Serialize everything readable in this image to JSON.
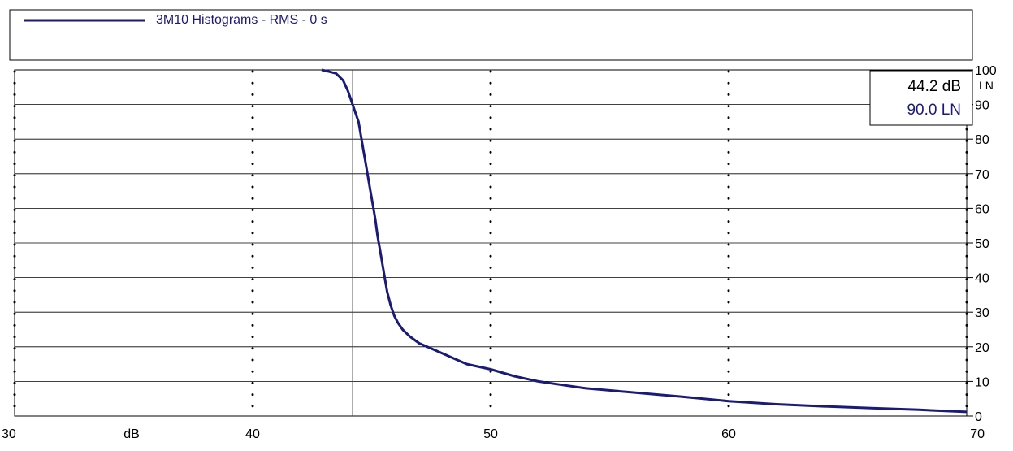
{
  "legend": {
    "series_label": "3M10 Histograms - RMS - 0 s"
  },
  "cursor_readout": {
    "x_value": "44.2 dB",
    "y_value": "90.0 LN"
  },
  "colors": {
    "series": "#1a1a7a",
    "grid": "#000000",
    "readout_y": "#1a1a7a"
  },
  "chart_data": {
    "type": "line",
    "title": "",
    "xlabel": "dB",
    "ylabel": "LN",
    "xlim": [
      30,
      70
    ],
    "ylim": [
      0,
      100
    ],
    "x_ticks": [
      30,
      40,
      50,
      60,
      70
    ],
    "y_ticks": [
      0,
      10,
      20,
      30,
      40,
      50,
      60,
      70,
      80,
      90,
      100
    ],
    "grid": {
      "x": "dotted",
      "y": "solid"
    },
    "legend_position": "top",
    "cursor": {
      "x": 44.2,
      "y": 90.0
    },
    "series": [
      {
        "name": "3M10 Histograms - RMS - 0 s",
        "x": [
          42.9,
          43.2,
          43.5,
          43.8,
          44.0,
          44.15,
          44.3,
          44.45,
          44.55,
          44.65,
          44.75,
          44.85,
          44.95,
          45.05,
          45.15,
          45.25,
          45.35,
          45.45,
          45.55,
          45.65,
          45.8,
          45.95,
          46.1,
          46.3,
          46.6,
          47.0,
          47.5,
          48.0,
          48.5,
          49.0,
          50.0,
          51.0,
          52.0,
          53.0,
          54.0,
          56.0,
          58.0,
          60.0,
          62.0,
          64.0,
          66.0,
          68.0,
          70.0
        ],
        "y": [
          100,
          99.5,
          99,
          97,
          94,
          91,
          88,
          85,
          81,
          77,
          73,
          69,
          65,
          61,
          57,
          52,
          48,
          44,
          40,
          36,
          32,
          29,
          27,
          25,
          23,
          21,
          19.5,
          18,
          16.5,
          15,
          13.5,
          11.5,
          10,
          9,
          8,
          6.8,
          5.6,
          4.3,
          3.4,
          2.8,
          2.3,
          1.8,
          1.2
        ]
      }
    ]
  }
}
